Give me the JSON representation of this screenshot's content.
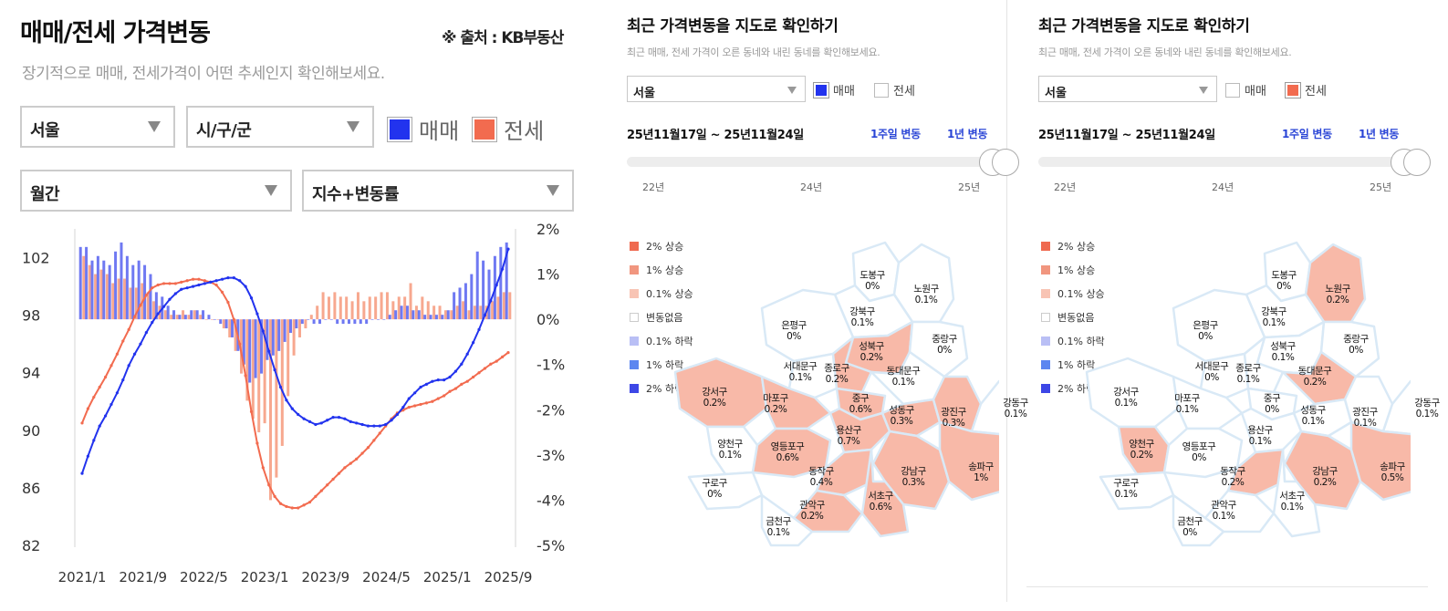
{
  "header": {
    "title": "매매/전세 가격변동",
    "source": "※ 출처 : KB부동산",
    "subtitle": "장기적으로 매매, 전세가격이 어떤 추세인지 확인해보세요."
  },
  "filters": {
    "region": "서울",
    "district": "시/구/군",
    "period": "월간",
    "mode": "지수+변동률"
  },
  "legend": {
    "sale_label": "매매",
    "jeonse_label": "전세",
    "sale_color": "#2233ee",
    "jeonse_color": "#f26b4f"
  },
  "chart_data": {
    "type": "line",
    "title": "",
    "x_labels": [
      "2021/1",
      "2021/9",
      "2022/5",
      "2023/1",
      "2023/9",
      "2024/5",
      "2025/1",
      "2025/9"
    ],
    "y_left": {
      "ticks": [
        82,
        86,
        90,
        94,
        98,
        102
      ],
      "range": [
        82,
        104
      ]
    },
    "y_right": {
      "ticks": [
        "2%",
        "1%",
        "0%",
        "-1%",
        "-2%",
        "-3%",
        "-4%",
        "-5%"
      ],
      "range": [
        -5,
        2
      ]
    },
    "grid": false,
    "series": [
      {
        "name": "매매",
        "axis": "left",
        "style": "line",
        "color": "#2233ee",
        "values": [
          87.0,
          88.2,
          89.3,
          90.3,
          91.0,
          91.8,
          92.6,
          93.5,
          94.5,
          95.3,
          96.0,
          96.8,
          97.5,
          98.1,
          98.6,
          99.1,
          99.5,
          99.8,
          99.9,
          100.0,
          100.1,
          100.2,
          100.3,
          100.4,
          100.5,
          100.6,
          100.6,
          100.4,
          100.0,
          99.2,
          98.1,
          96.9,
          95.5,
          94.2,
          93.0,
          92.1,
          91.5,
          91.1,
          90.8,
          90.6,
          90.4,
          90.5,
          90.7,
          90.9,
          90.9,
          90.8,
          90.6,
          90.5,
          90.4,
          90.3,
          90.3,
          90.3,
          90.4,
          90.7,
          91.1,
          91.6,
          92.2,
          92.6,
          93.0,
          93.2,
          93.4,
          93.5,
          93.5,
          93.7,
          94.1,
          94.6,
          95.3,
          96.1,
          97.0,
          98.0,
          99.0,
          100.1,
          101.2,
          102.6
        ]
      },
      {
        "name": "전세",
        "axis": "left",
        "style": "line",
        "color": "#f26b4f",
        "values": [
          90.5,
          91.5,
          92.3,
          93.0,
          93.7,
          94.5,
          95.3,
          96.2,
          97.0,
          97.9,
          98.7,
          99.4,
          99.9,
          100.1,
          100.2,
          100.2,
          100.2,
          100.3,
          100.4,
          100.5,
          100.5,
          100.4,
          100.3,
          100.1,
          99.6,
          98.9,
          97.7,
          96.0,
          93.8,
          91.3,
          89.1,
          87.4,
          86.2,
          85.4,
          84.9,
          84.7,
          84.6,
          84.6,
          84.8,
          85.0,
          85.4,
          85.8,
          86.2,
          86.6,
          87.0,
          87.4,
          87.7,
          88.0,
          88.4,
          88.8,
          89.3,
          89.8,
          90.3,
          90.8,
          91.2,
          91.4,
          91.6,
          91.7,
          91.8,
          91.9,
          92.0,
          92.2,
          92.4,
          92.7,
          92.9,
          93.2,
          93.4,
          93.7,
          94.0,
          94.3,
          94.6,
          94.8,
          95.1,
          95.4
        ]
      },
      {
        "name": "매매 변동률",
        "axis": "right",
        "style": "bar",
        "color": "#6f79f2",
        "values": [
          1.6,
          1.6,
          1.3,
          1.4,
          1.3,
          1.2,
          1.5,
          1.7,
          1.4,
          1.2,
          1.3,
          1.2,
          1.0,
          0.6,
          0.5,
          0.3,
          0.2,
          0.1,
          0.1,
          0.2,
          0.2,
          0.2,
          0.1,
          0.0,
          -0.1,
          -0.2,
          -0.4,
          -0.7,
          -1.0,
          -1.4,
          -1.3,
          -1.2,
          -0.9,
          -0.8,
          -0.7,
          -0.5,
          -0.3,
          -0.2,
          -0.1,
          0.0,
          -0.1,
          -0.1,
          0.0,
          0.0,
          -0.1,
          -0.1,
          -0.1,
          -0.1,
          -0.1,
          -0.1,
          0.0,
          0.0,
          0.0,
          0.1,
          0.2,
          0.3,
          0.3,
          0.2,
          0.2,
          0.1,
          0.1,
          0.1,
          0.1,
          0.2,
          0.6,
          0.7,
          0.8,
          1.0,
          1.5,
          1.3,
          1.1,
          1.4,
          1.6,
          1.7
        ]
      },
      {
        "name": "전세 변동률",
        "axis": "right",
        "style": "bar",
        "color": "#f7a88f",
        "values": [
          1.4,
          1.2,
          1.0,
          1.1,
          1.0,
          0.8,
          0.9,
          0.9,
          0.7,
          0.7,
          0.8,
          0.6,
          0.4,
          0.3,
          0.2,
          0.1,
          0.1,
          0.2,
          0.1,
          0.2,
          0.1,
          0.0,
          0.0,
          0.0,
          -0.2,
          -0.4,
          -0.7,
          -1.2,
          -1.8,
          -2.2,
          -2.5,
          -2.3,
          -4.0,
          -3.5,
          -2.8,
          -1.7,
          -0.8,
          -0.4,
          -0.2,
          0.1,
          0.3,
          0.6,
          0.5,
          0.6,
          0.5,
          0.5,
          0.4,
          0.6,
          0.4,
          0.5,
          0.5,
          0.6,
          0.6,
          0.4,
          0.5,
          0.5,
          0.8,
          0.3,
          0.5,
          0.4,
          0.3,
          0.3,
          0.2,
          0.2,
          0.3,
          0.4,
          0.2,
          0.3,
          0.3,
          0.3,
          0.4,
          0.5,
          0.6,
          0.6
        ]
      }
    ]
  },
  "map_panels": [
    {
      "title": "최근 가격변동을 지도로 확인하기",
      "subtitle": "최근 매매, 전세 가격이 오른 동네와 내린 동네를 확인해보세요.",
      "region": "서울",
      "check_sale": "매매",
      "sale_checked": true,
      "check_jeonse": "전세",
      "jeonse_checked": false,
      "date_range": "25년11월17일 ~ 25년11월24일",
      "tab_week": "1주일 변동",
      "tab_year": "1년 변동",
      "ticks": [
        "22년",
        "24년",
        "25년"
      ],
      "legend": [
        {
          "label": "2% 상승",
          "color": "#ef6a50"
        },
        {
          "label": "1% 상승",
          "color": "#f1967f"
        },
        {
          "label": "0.1% 상승",
          "color": "#f8c4b4"
        },
        {
          "label": "변동없음",
          "color": "#ffffff"
        },
        {
          "label": "0.1% 하락",
          "color": "#b9bff5"
        },
        {
          "label": "1% 하락",
          "color": "#5c86f0"
        },
        {
          "label": "2% 하락",
          "color": "#3d47e6"
        }
      ],
      "districts": [
        {
          "name": "도봉구",
          "value": "0%",
          "color": "#ffffff"
        },
        {
          "name": "노원구",
          "value": "0.1%",
          "color": "#ffffff"
        },
        {
          "name": "강북구",
          "value": "0.1%",
          "color": "#ffffff"
        },
        {
          "name": "은평구",
          "value": "0%",
          "color": "#ffffff"
        },
        {
          "name": "성북구",
          "value": "0.2%",
          "color": "#f8b9a8"
        },
        {
          "name": "중랑구",
          "value": "0%",
          "color": "#ffffff"
        },
        {
          "name": "서대문구",
          "value": "0.1%",
          "color": "#ffffff"
        },
        {
          "name": "종로구",
          "value": "0.2%",
          "color": "#f8b9a8"
        },
        {
          "name": "동대문구",
          "value": "0.1%",
          "color": "#ffffff"
        },
        {
          "name": "강서구",
          "value": "0.2%",
          "color": "#f8b9a8"
        },
        {
          "name": "마포구",
          "value": "0.2%",
          "color": "#f8b9a8"
        },
        {
          "name": "중구",
          "value": "0.6%",
          "color": "#f8b9a8"
        },
        {
          "name": "성동구",
          "value": "0.3%",
          "color": "#f8b9a8"
        },
        {
          "name": "광진구",
          "value": "0.3%",
          "color": "#f8b9a8"
        },
        {
          "name": "강동구",
          "value": "0.1%",
          "color": "#ffffff"
        },
        {
          "name": "용산구",
          "value": "0.7%",
          "color": "#f8b9a8"
        },
        {
          "name": "양천구",
          "value": "0.1%",
          "color": "#ffffff"
        },
        {
          "name": "영등포구",
          "value": "0.6%",
          "color": "#f8b9a8"
        },
        {
          "name": "동작구",
          "value": "0.4%",
          "color": "#f8b9a8"
        },
        {
          "name": "구로구",
          "value": "0%",
          "color": "#ffffff"
        },
        {
          "name": "강남구",
          "value": "0.3%",
          "color": "#f8b9a8"
        },
        {
          "name": "송파구",
          "value": "1%",
          "color": "#f8b9a8"
        },
        {
          "name": "서초구",
          "value": "0.6%",
          "color": "#f8b9a8"
        },
        {
          "name": "관악구",
          "value": "0.2%",
          "color": "#f8b9a8"
        },
        {
          "name": "금천구",
          "value": "0.1%",
          "color": "#ffffff"
        }
      ]
    },
    {
      "title": "최근 가격변동을 지도로 확인하기",
      "subtitle": "최근 매매, 전세 가격이 오른 동네와 내린 동네를 확인해보세요.",
      "region": "서울",
      "check_sale": "매매",
      "sale_checked": false,
      "check_jeonse": "전세",
      "jeonse_checked": true,
      "date_range": "25년11월17일 ~ 25년11월24일",
      "tab_week": "1주일 변동",
      "tab_year": "1년 변동",
      "ticks": [
        "22년",
        "24년",
        "25년"
      ],
      "legend": [
        {
          "label": "2% 상승",
          "color": "#ef6a50"
        },
        {
          "label": "1% 상승",
          "color": "#f1967f"
        },
        {
          "label": "0.1% 상승",
          "color": "#f8c4b4"
        },
        {
          "label": "변동없음",
          "color": "#ffffff"
        },
        {
          "label": "0.1% 하락",
          "color": "#b9bff5"
        },
        {
          "label": "1% 하락",
          "color": "#5c86f0"
        },
        {
          "label": "2% 하락",
          "color": "#3d47e6"
        }
      ],
      "districts": [
        {
          "name": "도봉구",
          "value": "0%",
          "color": "#ffffff"
        },
        {
          "name": "노원구",
          "value": "0.2%",
          "color": "#f8b9a8"
        },
        {
          "name": "강북구",
          "value": "0.1%",
          "color": "#ffffff"
        },
        {
          "name": "은평구",
          "value": "0%",
          "color": "#ffffff"
        },
        {
          "name": "성북구",
          "value": "0.1%",
          "color": "#ffffff"
        },
        {
          "name": "중랑구",
          "value": "0%",
          "color": "#ffffff"
        },
        {
          "name": "서대문구",
          "value": "0%",
          "color": "#ffffff"
        },
        {
          "name": "종로구",
          "value": "0.1%",
          "color": "#ffffff"
        },
        {
          "name": "동대문구",
          "value": "0.2%",
          "color": "#f8b9a8"
        },
        {
          "name": "강서구",
          "value": "0.1%",
          "color": "#ffffff"
        },
        {
          "name": "마포구",
          "value": "0.1%",
          "color": "#ffffff"
        },
        {
          "name": "중구",
          "value": "0%",
          "color": "#ffffff"
        },
        {
          "name": "성동구",
          "value": "0.1%",
          "color": "#ffffff"
        },
        {
          "name": "광진구",
          "value": "0.1%",
          "color": "#ffffff"
        },
        {
          "name": "강동구",
          "value": "0.1%",
          "color": "#ffffff"
        },
        {
          "name": "용산구",
          "value": "0.1%",
          "color": "#ffffff"
        },
        {
          "name": "양천구",
          "value": "0.2%",
          "color": "#f8b9a8"
        },
        {
          "name": "영등포구",
          "value": "0%",
          "color": "#ffffff"
        },
        {
          "name": "동작구",
          "value": "0.2%",
          "color": "#f8b9a8"
        },
        {
          "name": "구로구",
          "value": "0.1%",
          "color": "#ffffff"
        },
        {
          "name": "강남구",
          "value": "0.2%",
          "color": "#f8b9a8"
        },
        {
          "name": "송파구",
          "value": "0.5%",
          "color": "#f8b9a8"
        },
        {
          "name": "서초구",
          "value": "0.1%",
          "color": "#ffffff"
        },
        {
          "name": "관악구",
          "value": "0.1%",
          "color": "#ffffff"
        },
        {
          "name": "금천구",
          "value": "0%",
          "color": "#ffffff"
        }
      ]
    }
  ]
}
